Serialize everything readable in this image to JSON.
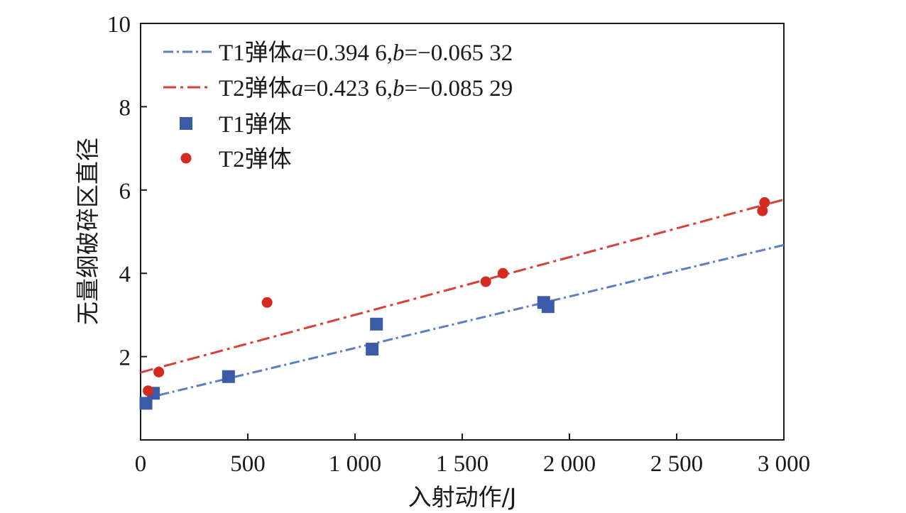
{
  "chart_data": {
    "type": "scatter",
    "title": "",
    "xlabel": "入射动作/J",
    "ylabel": "无量纲破碎区直径",
    "xlim": [
      0,
      3000
    ],
    "ylim": [
      0,
      10
    ],
    "x_ticks": [
      0,
      500,
      1000,
      1500,
      2000,
      2500,
      3000
    ],
    "x_tick_labels": [
      "0",
      "500",
      "1 000",
      "1 500",
      "2 000",
      "2 500",
      "3 000"
    ],
    "y_ticks": [
      2,
      4,
      6,
      8,
      10
    ],
    "y_tick_labels": [
      "2",
      "4",
      "6",
      "8",
      "10"
    ],
    "grid": false,
    "legend_position": "top-left",
    "series": [
      {
        "name": "T1弹体",
        "marker": "square",
        "color": "#3a5ba8",
        "points": [
          [
            25,
            0.88
          ],
          [
            60,
            1.12
          ],
          [
            410,
            1.52
          ],
          [
            1080,
            2.18
          ],
          [
            1100,
            2.78
          ],
          [
            1880,
            3.3
          ],
          [
            1900,
            3.2
          ]
        ]
      },
      {
        "name": "T2弹体",
        "marker": "circle",
        "color": "#d42a22",
        "points": [
          [
            35,
            1.18
          ],
          [
            85,
            1.63
          ],
          [
            590,
            3.3
          ],
          [
            1610,
            3.8
          ],
          [
            1690,
            4.0
          ],
          [
            2900,
            5.5
          ],
          [
            2910,
            5.7
          ]
        ]
      }
    ],
    "fit_lines": [
      {
        "name": "T1弹体",
        "label": "T1弹体a=0.394 6,b=−0.065 32",
        "label_prefix": "T1弹体",
        "a_text": "=0.394 6,",
        "b_text": "=−0.065 32",
        "style": "dash-dot",
        "color": "#5b7ec4",
        "x_range": [
          0,
          3000
        ],
        "y_range": [
          0.97,
          4.68
        ]
      },
      {
        "name": "T2弹体",
        "label": "T2弹体a=0.423 6,b=−0.085 29",
        "label_prefix": "T2弹体",
        "a_text": "=0.423 6,",
        "b_text": "=−0.085 29",
        "style": "dashed",
        "color": "#d8403a",
        "x_range": [
          0,
          3000
        ],
        "y_range": [
          1.62,
          5.77
        ]
      }
    ]
  }
}
